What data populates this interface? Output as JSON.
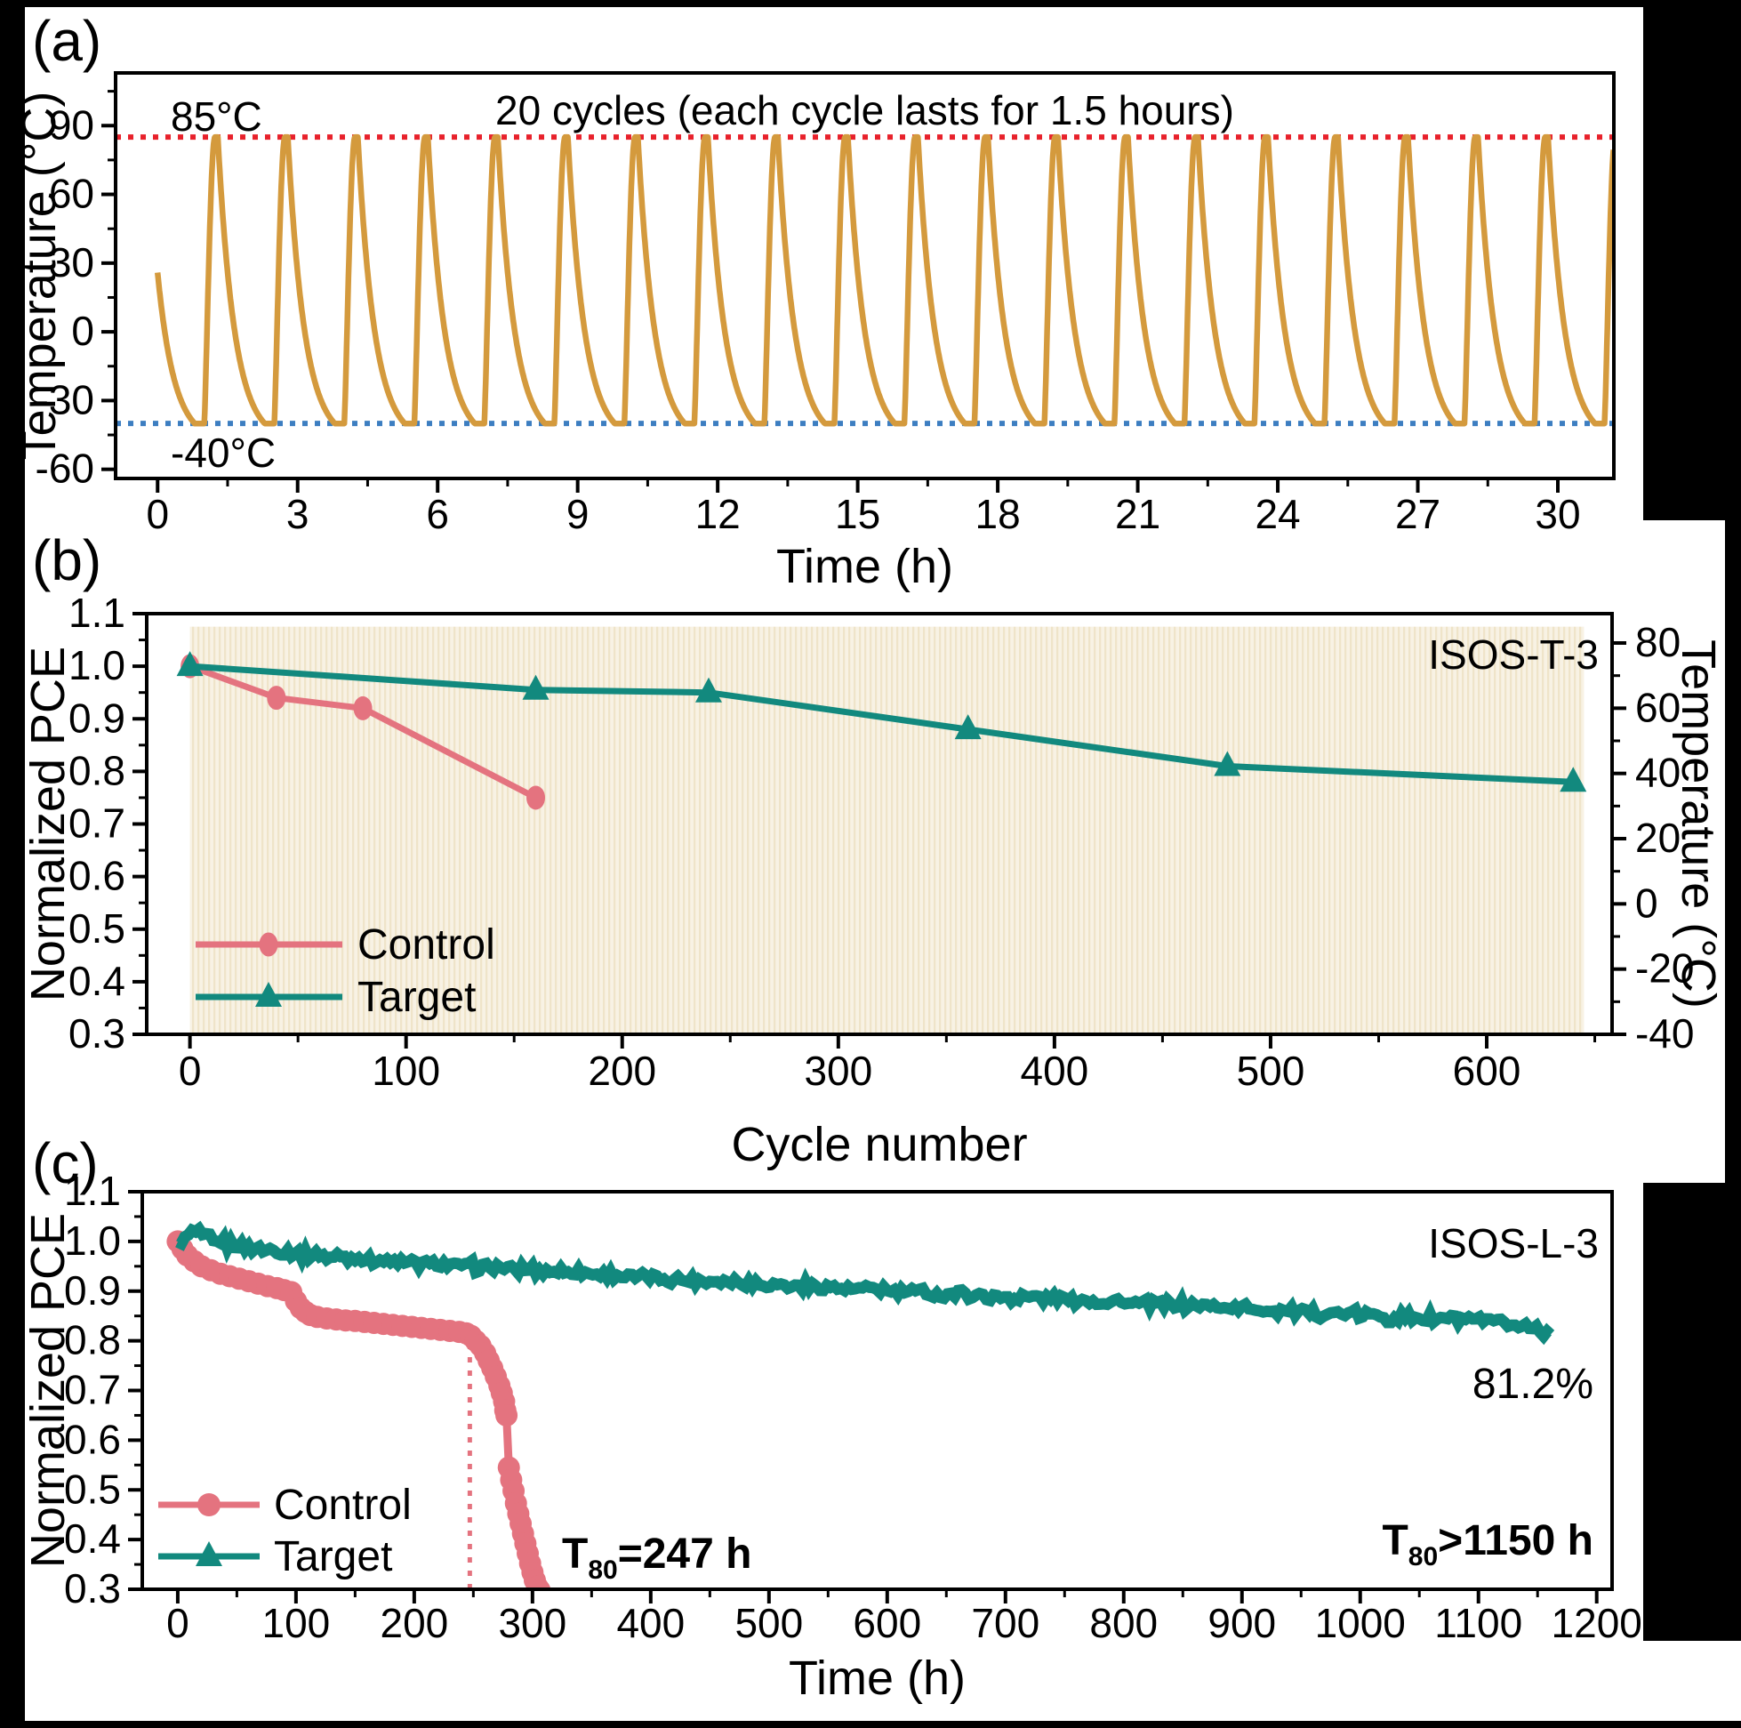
{
  "figure": {
    "panel_letters": {
      "a": "(a)",
      "b": "(b)",
      "c": "(c)"
    },
    "background_color": "#000000",
    "panel_color": "#ffffff"
  },
  "colors": {
    "orange": "#d49a3d",
    "bright_red": "#e8212b",
    "blue": "#3d7ec1",
    "pink": "#e4737f",
    "pink_bold_text": "#d9485a",
    "teal": "#12897e",
    "stripe_light": "#f8f2e4",
    "stripe_dark": "#efe4c9"
  },
  "chart_data": [
    {
      "id": "a",
      "type": "line",
      "title": "20 cycles (each cycle lasts for 1.5 hours)",
      "xlabel": "Time (h)",
      "ylabel": "Temperature (°C)",
      "xlim": [
        -0.9,
        31.2
      ],
      "ylim": [
        -64,
        113
      ],
      "x_tick_values": [
        0,
        3,
        6,
        9,
        12,
        15,
        18,
        21,
        24,
        27,
        30
      ],
      "x_tick_labels": [
        "0",
        "3",
        "6",
        "9",
        "12",
        "15",
        "18",
        "21",
        "24",
        "27",
        "30"
      ],
      "y_tick_values": [
        90,
        60,
        30,
        0,
        -30,
        -60
      ],
      "y_tick_labels": [
        "90",
        "60",
        "30",
        "0",
        "-30",
        "-60"
      ],
      "grid": false,
      "reference_lines": [
        {
          "label": "85°C",
          "value": 85,
          "color": "#e8212b",
          "style": "dotted"
        },
        {
          "label": "-40°C",
          "value": -40,
          "color": "#3d7ec1",
          "style": "dotted"
        }
      ],
      "series": [
        {
          "name": "temperature-cycling-profile",
          "color": "#d49a3d",
          "cycles": 20,
          "period_h": 1.5,
          "peak_c": 85,
          "trough_c": -40,
          "first_peak_h": 1.23,
          "hold_top_h": 0.06,
          "decay_h": 1.0,
          "rise_h": 0.23,
          "start_temp_c": 25,
          "t_start": 0,
          "t_end": 31.2
        }
      ]
    },
    {
      "id": "b",
      "type": "line",
      "corner_label": "ISOS-T-3",
      "xlabel": "Cycle number",
      "ylabel": "Normalized PCE",
      "ylabel_right": "Temperature (°C)",
      "xlim": [
        -20,
        658
      ],
      "ylim_left": [
        0.3,
        1.1
      ],
      "ylim_right": [
        -40,
        89
      ],
      "x_tick_values": [
        0,
        100,
        200,
        300,
        400,
        500,
        600
      ],
      "x_tick_labels": [
        "0",
        "100",
        "200",
        "300",
        "400",
        "500",
        "600"
      ],
      "y_tick_values": [
        1.1,
        1.0,
        0.9,
        0.8,
        0.7,
        0.6,
        0.5,
        0.4,
        0.3
      ],
      "y_tick_labels": [
        "1.1",
        "1.0",
        "0.9",
        "0.8",
        "0.7",
        "0.6",
        "0.5",
        "0.4",
        "0.3"
      ],
      "y_right_tick_values": [
        80,
        60,
        40,
        20,
        0,
        -20,
        -40
      ],
      "y_right_tick_labels": [
        "80",
        "60",
        "40",
        "20",
        "0",
        "-20",
        "-40"
      ],
      "grid": false,
      "legend_position": "lower-left",
      "shaded_region": {
        "x_range": [
          0,
          645
        ],
        "temp_range": [
          -40,
          85
        ]
      },
      "series": [
        {
          "name": "Control",
          "marker": "circle",
          "color": "#e4737f",
          "x": [
            0,
            40,
            80,
            160
          ],
          "y": [
            1.0,
            0.94,
            0.92,
            0.75
          ]
        },
        {
          "name": "Target",
          "marker": "triangle",
          "color": "#12897e",
          "x": [
            0,
            160,
            240,
            360,
            480,
            640
          ],
          "y": [
            1.0,
            0.955,
            0.95,
            0.88,
            0.81,
            0.78
          ]
        }
      ]
    },
    {
      "id": "c",
      "type": "line",
      "corner_label": "ISOS-L-3",
      "xlabel": "Time (h)",
      "ylabel": "Normalized PCE",
      "xlim": [
        -30,
        1213
      ],
      "ylim": [
        0.3,
        1.1
      ],
      "x_tick_values": [
        0,
        100,
        200,
        300,
        400,
        500,
        600,
        700,
        800,
        900,
        1000,
        1100,
        1200
      ],
      "x_tick_labels": [
        "0",
        "100",
        "200",
        "300",
        "400",
        "500",
        "600",
        "700",
        "800",
        "900",
        "1000",
        "1100",
        "1200"
      ],
      "y_tick_values": [
        1.1,
        1.0,
        0.9,
        0.8,
        0.7,
        0.6,
        0.5,
        0.4,
        0.3
      ],
      "y_tick_labels": [
        "1.1",
        "1.0",
        "0.9",
        "0.8",
        "0.7",
        "0.6",
        "0.5",
        "0.4",
        "0.3"
      ],
      "grid": false,
      "legend_position": "lower-left",
      "t80_marker_line": {
        "x": 247,
        "y_top": 0.79,
        "color": "#e4737f",
        "style": "dotted"
      },
      "annotations": {
        "control_t80": {
          "pre": "T",
          "sub": "80",
          "post": "=247 h",
          "color": "#d9485a"
        },
        "target_t80": {
          "pre": "T",
          "sub": "80",
          "post": ">1150 h",
          "color": "#12897e"
        },
        "final_pce": {
          "text": "81.2%",
          "color": "#12897e"
        }
      },
      "series": [
        {
          "name": "Control",
          "marker": "circle",
          "color": "#e4737f",
          "x": [
            0,
            4,
            8,
            14,
            20,
            28,
            36,
            44,
            52,
            60,
            68,
            76,
            84,
            90,
            96,
            100,
            104,
            108,
            112,
            118,
            126,
            134,
            142,
            150,
            158,
            166,
            174,
            182,
            190,
            198,
            206,
            214,
            222,
            230,
            238,
            244,
            248,
            252,
            256,
            260,
            263,
            266,
            269,
            272,
            274,
            276,
            277,
            278,
            280,
            282,
            284,
            286,
            288,
            290,
            292,
            294,
            296,
            298,
            300,
            302,
            304,
            306
          ],
          "y": [
            1.0,
            0.985,
            0.972,
            0.96,
            0.95,
            0.942,
            0.935,
            0.93,
            0.925,
            0.92,
            0.915,
            0.91,
            0.906,
            0.902,
            0.898,
            0.88,
            0.866,
            0.858,
            0.852,
            0.848,
            0.845,
            0.843,
            0.841,
            0.84,
            0.838,
            0.836,
            0.834,
            0.832,
            0.83,
            0.828,
            0.826,
            0.824,
            0.822,
            0.82,
            0.818,
            0.815,
            0.81,
            0.8,
            0.79,
            0.775,
            0.76,
            0.745,
            0.728,
            0.71,
            0.695,
            0.678,
            0.66,
            0.65,
            0.545,
            0.52,
            0.498,
            0.473,
            0.452,
            0.432,
            0.412,
            0.392,
            0.372,
            0.352,
            0.334,
            0.318,
            0.305,
            0.298
          ]
        },
        {
          "name": "Target",
          "marker": "triangle",
          "color": "#12897e",
          "noise": 0.008,
          "x": [
            0,
            3,
            6,
            10,
            15,
            20,
            26,
            32,
            40,
            50,
            60,
            75,
            90,
            110,
            130,
            150,
            175,
            200,
            230,
            260,
            290,
            320,
            350,
            380,
            410,
            440,
            470,
            500,
            530,
            560,
            590,
            620,
            650,
            680,
            710,
            740,
            770,
            800,
            830,
            860,
            890,
            920,
            950,
            980,
            1010,
            1040,
            1070,
            1100,
            1120,
            1140,
            1150,
            1158,
            1162
          ],
          "y": [
            0.993,
            1.0,
            1.008,
            1.015,
            1.02,
            1.012,
            1.005,
            1.0,
            0.996,
            0.992,
            0.988,
            0.983,
            0.979,
            0.974,
            0.969,
            0.965,
            0.961,
            0.957,
            0.952,
            0.948,
            0.944,
            0.94,
            0.935,
            0.93,
            0.926,
            0.922,
            0.918,
            0.914,
            0.91,
            0.906,
            0.902,
            0.898,
            0.894,
            0.891,
            0.888,
            0.885,
            0.882,
            0.878,
            0.874,
            0.87,
            0.866,
            0.862,
            0.858,
            0.854,
            0.85,
            0.846,
            0.843,
            0.84,
            0.836,
            0.83,
            0.824,
            0.817,
            0.813
          ]
        }
      ]
    }
  ]
}
